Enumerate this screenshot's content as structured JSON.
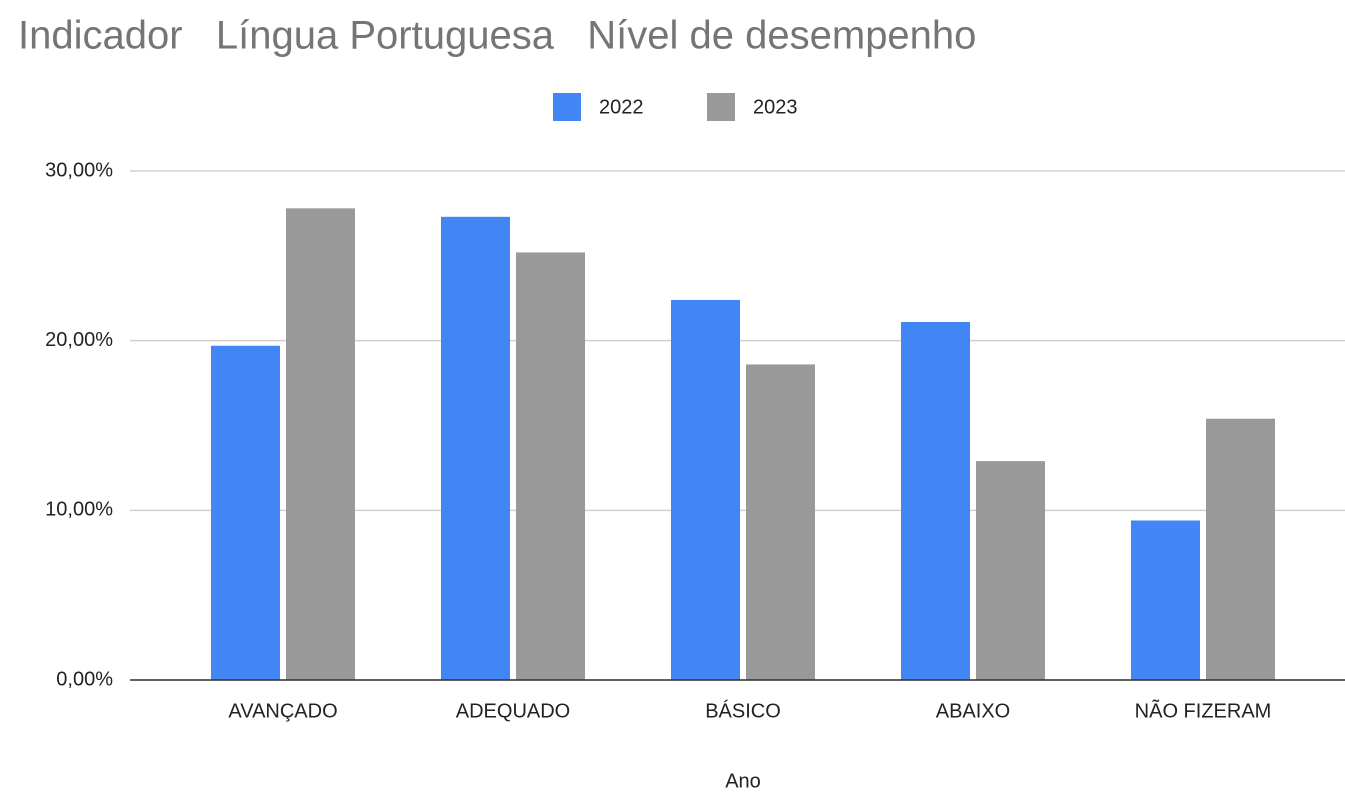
{
  "chart_data": {
    "type": "bar",
    "title": "Indicador   Língua Portuguesa   Nível de desempenho",
    "x_label": "Ano",
    "categories": [
      "AVANÇADO",
      "ADEQUADO",
      "BÁSICO",
      "ABAIXO",
      "NÃO FIZERAM"
    ],
    "series": [
      {
        "name": "2022",
        "color": "#4285f4",
        "values": [
          19.7,
          27.3,
          22.4,
          21.1,
          9.4
        ]
      },
      {
        "name": "2023",
        "color": "#999999",
        "values": [
          27.8,
          25.2,
          18.6,
          12.9,
          15.4
        ]
      }
    ],
    "ylim": [
      0,
      30
    ],
    "yticks": [
      {
        "value": 0,
        "label": "0,00%"
      },
      {
        "value": 10,
        "label": "10,00%"
      },
      {
        "value": 20,
        "label": "20,00%"
      },
      {
        "value": 30,
        "label": "30,00%"
      }
    ],
    "grid": true,
    "legend": "top"
  }
}
